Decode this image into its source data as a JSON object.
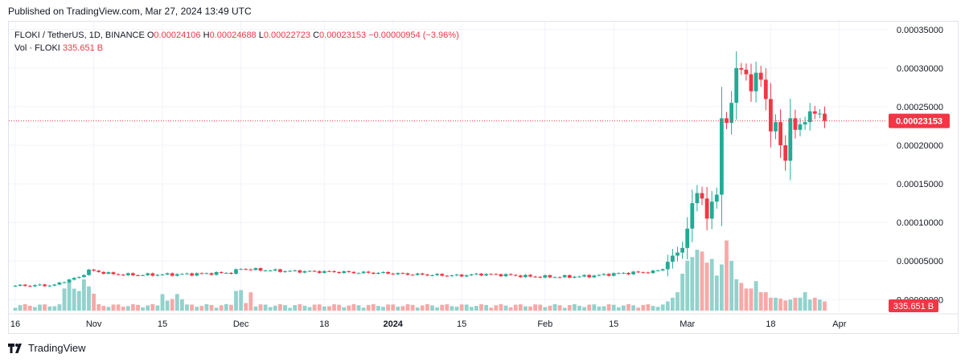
{
  "header": {
    "published": "Published on TradingView.com, Mar 27, 2024 13:49 UTC"
  },
  "legend": {
    "symbol": "FLOKI / TetherUS, 1D, BINANCE",
    "o_label": "O",
    "o_value": "0.00024106",
    "h_label": "H",
    "h_value": "0.00024688",
    "l_label": "L",
    "l_value": "0.00022723",
    "c_label": "C",
    "c_value": "0.00023153",
    "change": "−0.00000954 (−3.96%)",
    "vol_label": "Vol · FLOKI",
    "vol_value": "335.651 B"
  },
  "footer": {
    "brand": "TradingView"
  },
  "colors": {
    "up": "#22ab94",
    "down": "#f23645",
    "vol_up": "#92d2cc",
    "vol_down": "#f7a9a7",
    "grid": "#f0f3fa"
  },
  "chart_data": {
    "type": "candlestick",
    "title": "",
    "xlabel": "",
    "ylabel": "",
    "ylim": [
      -8e-06,
      0.000356
    ],
    "y_ticks": [
      "0.00000000",
      "0.00005000",
      "0.00010000",
      "0.00015000",
      "0.00020000",
      "0.00025000",
      "0.00030000",
      "0.00035000"
    ],
    "y_tick_values": [
      0,
      5e-05,
      0.0001,
      0.00015,
      0.0002,
      0.00025,
      0.0003,
      0.00035
    ],
    "x_ticks": [
      {
        "label": "16",
        "day": 0
      },
      {
        "label": "Nov",
        "day": 16
      },
      {
        "label": "15",
        "day": 30
      },
      {
        "label": "Dec",
        "day": 46
      },
      {
        "label": "18",
        "day": 63
      },
      {
        "label": "2024",
        "day": 77
      },
      {
        "label": "15",
        "day": 91
      },
      {
        "label": "Feb",
        "day": 108
      },
      {
        "label": "15",
        "day": 122
      },
      {
        "label": "Mar",
        "day": 137
      },
      {
        "label": "18",
        "day": 154
      },
      {
        "label": "Apr",
        "day": 168
      }
    ],
    "first_date": "2023-10-16",
    "last_price": "0.00023153",
    "last_volume": "335.651 B",
    "anchors_close": [
      [
        0,
        1.8e-05
      ],
      [
        8,
        1.88e-05
      ],
      [
        10,
        2.4e-05
      ],
      [
        13,
        2.9e-05
      ],
      [
        15,
        3.8e-05
      ],
      [
        17,
        3.6e-05
      ],
      [
        20,
        3.3e-05
      ],
      [
        25,
        3.2e-05
      ],
      [
        30,
        3.25e-05
      ],
      [
        35,
        3.3e-05
      ],
      [
        40,
        3.4e-05
      ],
      [
        44,
        3.5e-05
      ],
      [
        46,
        4e-05
      ],
      [
        50,
        3.85e-05
      ],
      [
        55,
        3.7e-05
      ],
      [
        60,
        3.65e-05
      ],
      [
        65,
        3.6e-05
      ],
      [
        70,
        3.5e-05
      ],
      [
        75,
        3.45e-05
      ],
      [
        80,
        3.3e-05
      ],
      [
        85,
        3.2e-05
      ],
      [
        90,
        3.1e-05
      ],
      [
        95,
        3.3e-05
      ],
      [
        100,
        3.2e-05
      ],
      [
        105,
        3e-05
      ],
      [
        110,
        2.95e-05
      ],
      [
        115,
        3e-05
      ],
      [
        118,
        3.1e-05
      ],
      [
        122,
        3.35e-05
      ],
      [
        126,
        3.5e-05
      ],
      [
        130,
        3.6e-05
      ],
      [
        132,
        4e-05
      ]
    ],
    "late_closes": [
      4.9e-05,
      5.7e-05,
      6.1e-05,
      6.7e-05,
      9.2e-05,
      0.000125,
      0.000138,
      0.000131,
      0.000105,
      0.000127,
      0.000136,
      0.000235,
      0.000229,
      0.000255,
      0.0003,
      0.000298,
      0.000292,
      0.00027,
      0.000294,
      0.000285,
      0.00026,
      0.000218,
      0.00023,
      0.0002,
      0.00018,
      0.000235,
      0.00022,
      0.000227,
      0.00023,
      0.000244,
      0.000241,
      0.000241,
      0.0002315
    ],
    "late_volumes": [
      10,
      14,
      20,
      40,
      54,
      58,
      66,
      64,
      52,
      56,
      38,
      50,
      76,
      54,
      34,
      30,
      24,
      24,
      32,
      20,
      20,
      14,
      14,
      13,
      11,
      12,
      14,
      14,
      20,
      12,
      14,
      12,
      10
    ],
    "volume_max": 80
  }
}
